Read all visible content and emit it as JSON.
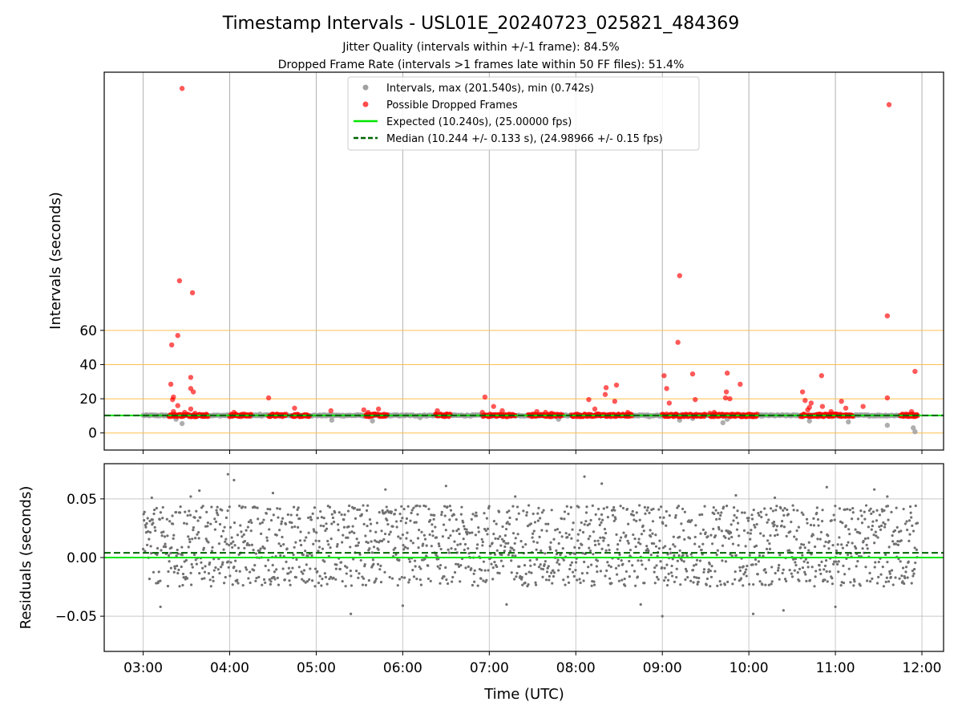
{
  "figure": {
    "title": "Timestamp Intervals - USL01E_20240723_025821_484369",
    "subtitle_1": "Jitter Quality (intervals within +/-1 frame): 84.5%",
    "subtitle_2": "Dropped Frame Rate (intervals >1 frames late within 50 FF files): 51.4%"
  },
  "colors": {
    "intervals": "#a0a0a0",
    "dropped": "#ff0000",
    "expected": "#00e600",
    "median": "#006400",
    "guide_lines": "#ffc04d",
    "residuals": "#707070",
    "grid": "#b0b0b0"
  },
  "chart_data": [
    {
      "type": "scatter",
      "name": "intervals-panel",
      "ylabel": "Intervals (seconds)",
      "xlabel": "",
      "x_ticks": [
        "03:00",
        "04:00",
        "05:00",
        "06:00",
        "07:00",
        "08:00",
        "09:00",
        "10:00",
        "11:00",
        "12:00"
      ],
      "x_range_hours": [
        2.55,
        12.25
      ],
      "y_range": [
        -10,
        211
      ],
      "y_ticks": [
        0,
        20,
        40,
        60
      ],
      "horizontal_guides": [
        0,
        20,
        40,
        60
      ],
      "vertical_grid": true,
      "legend": {
        "placement": "top-center",
        "entries": [
          "Intervals, max (201.540s), min (0.742s)",
          "Possible Dropped Frames",
          "Expected (10.240s), (25.00000 fps)",
          "Median (10.244 +/- 0.133 s), (24.98966 +/- 0.15 fps)"
        ]
      },
      "expected_value": 10.24,
      "median_value": 10.244,
      "series": [
        {
          "name": "Intervals, max (201.540s), min (0.742s)",
          "band": {
            "start_hour": 3.0,
            "end_hour": 11.95,
            "value": 10.24
          },
          "points": [
            [
              3.45,
              5.5
            ],
            [
              3.38,
              8.0
            ],
            [
              4.35,
              11.0
            ],
            [
              5.18,
              7.5
            ],
            [
              5.65,
              7.0
            ],
            [
              6.2,
              9.0
            ],
            [
              7.8,
              8.0
            ],
            [
              8.85,
              9.5
            ],
            [
              9.2,
              7.5
            ],
            [
              9.35,
              8.5
            ],
            [
              9.7,
              6.0
            ],
            [
              9.75,
              8.0
            ],
            [
              10.7,
              7.0
            ],
            [
              11.15,
              6.5
            ],
            [
              11.6,
              4.5
            ],
            [
              11.9,
              3.0
            ],
            [
              11.92,
              0.742
            ]
          ]
        },
        {
          "name": "Possible Dropped Frames",
          "points": [
            [
              3.45,
              201.5
            ],
            [
              3.42,
              89.0
            ],
            [
              3.57,
              82.0
            ],
            [
              3.4,
              57.0
            ],
            [
              3.33,
              51.5
            ],
            [
              3.55,
              32.5
            ],
            [
              3.32,
              28.5
            ],
            [
              3.55,
              26.0
            ],
            [
              3.58,
              24.0
            ],
            [
              3.35,
              21.0
            ],
            [
              3.34,
              19.5
            ],
            [
              3.4,
              16.0
            ],
            [
              3.55,
              14.0
            ],
            [
              3.48,
              12.0
            ],
            [
              3.35,
              12.5
            ],
            [
              3.6,
              11.5
            ],
            [
              4.05,
              12.0
            ],
            [
              4.45,
              20.5
            ],
            [
              4.75,
              14.5
            ],
            [
              5.17,
              13.0
            ],
            [
              5.55,
              13.5
            ],
            [
              5.6,
              12.0
            ],
            [
              5.72,
              14.0
            ],
            [
              6.4,
              13.0
            ],
            [
              6.95,
              21.0
            ],
            [
              6.92,
              12.0
            ],
            [
              7.05,
              15.5
            ],
            [
              7.15,
              13.0
            ],
            [
              7.55,
              12.5
            ],
            [
              7.65,
              12.0
            ],
            [
              7.72,
              11.5
            ],
            [
              8.15,
              19.5
            ],
            [
              8.22,
              14.0
            ],
            [
              8.35,
              26.5
            ],
            [
              8.47,
              28.0
            ],
            [
              8.45,
              18.5
            ],
            [
              8.34,
              22.5
            ],
            [
              8.6,
              12.0
            ],
            [
              9.02,
              33.5
            ],
            [
              9.05,
              26.0
            ],
            [
              9.08,
              17.5
            ],
            [
              9.18,
              53.0
            ],
            [
              9.2,
              92.0
            ],
            [
              9.35,
              34.5
            ],
            [
              9.38,
              19.5
            ],
            [
              9.55,
              11.5
            ],
            [
              9.75,
              35.0
            ],
            [
              9.74,
              24.0
            ],
            [
              9.78,
              20.0
            ],
            [
              9.73,
              20.5
            ],
            [
              9.9,
              28.5
            ],
            [
              9.6,
              12.0
            ],
            [
              10.62,
              24.0
            ],
            [
              10.65,
              19.0
            ],
            [
              10.72,
              17.5
            ],
            [
              10.7,
              15.0
            ],
            [
              10.68,
              13.5
            ],
            [
              10.84,
              33.5
            ],
            [
              10.85,
              15.5
            ],
            [
              10.95,
              12.5
            ],
            [
              11.07,
              18.5
            ],
            [
              11.12,
              14.5
            ],
            [
              11.32,
              15.5
            ],
            [
              11.6,
              20.5
            ],
            [
              11.62,
              192.0
            ],
            [
              11.6,
              68.5
            ],
            [
              11.92,
              36.0
            ],
            [
              11.88,
              12.5
            ]
          ],
          "clusters": [
            [
              3.3,
              3.75
            ],
            [
              4.0,
              4.25
            ],
            [
              4.45,
              4.65
            ],
            [
              4.72,
              4.92
            ],
            [
              5.57,
              5.82
            ],
            [
              6.38,
              6.55
            ],
            [
              6.93,
              7.3
            ],
            [
              7.45,
              7.85
            ],
            [
              7.95,
              8.65
            ],
            [
              9.0,
              9.5
            ],
            [
              9.55,
              10.1
            ],
            [
              10.6,
              11.2
            ],
            [
              11.75,
              11.95
            ]
          ]
        }
      ]
    },
    {
      "type": "scatter",
      "name": "residuals-panel",
      "ylabel": "Residuals (seconds)",
      "xlabel": "Time (UTC)",
      "x_ticks": [
        "03:00",
        "04:00",
        "05:00",
        "06:00",
        "07:00",
        "08:00",
        "09:00",
        "10:00",
        "11:00",
        "12:00"
      ],
      "x_range_hours": [
        2.55,
        12.25
      ],
      "y_range": [
        -0.08,
        0.08
      ],
      "y_ticks": [
        0.05,
        0.0,
        -0.05
      ],
      "y_tick_labels": [
        "0.05",
        "0.00",
        "−0.05"
      ],
      "grid": true,
      "expected_value": 0.0,
      "median_value": 0.004,
      "residual_levels": [
        -0.02,
        -0.01,
        0.0,
        0.01,
        0.02,
        0.03,
        0.04
      ],
      "points": [
        [
          3.98,
          0.071
        ],
        [
          4.05,
          0.066
        ],
        [
          8.1,
          0.069
        ],
        [
          8.3,
          0.063
        ],
        [
          3.65,
          0.057
        ],
        [
          6.5,
          0.061
        ],
        [
          10.9,
          0.06
        ],
        [
          11.45,
          0.058
        ],
        [
          9.0,
          -0.05
        ],
        [
          5.4,
          -0.048
        ],
        [
          10.05,
          -0.048
        ],
        [
          10.4,
          -0.045
        ],
        [
          11.0,
          -0.042
        ],
        [
          3.2,
          -0.042
        ],
        [
          6.0,
          -0.041
        ],
        [
          3.55,
          0.052
        ],
        [
          4.5,
          0.055
        ],
        [
          5.8,
          0.058
        ],
        [
          7.3,
          0.052
        ],
        [
          9.85,
          0.053
        ],
        [
          10.3,
          0.051
        ],
        [
          11.6,
          0.052
        ],
        [
          3.1,
          0.051
        ],
        [
          8.75,
          -0.04
        ],
        [
          7.2,
          -0.04
        ]
      ]
    }
  ]
}
